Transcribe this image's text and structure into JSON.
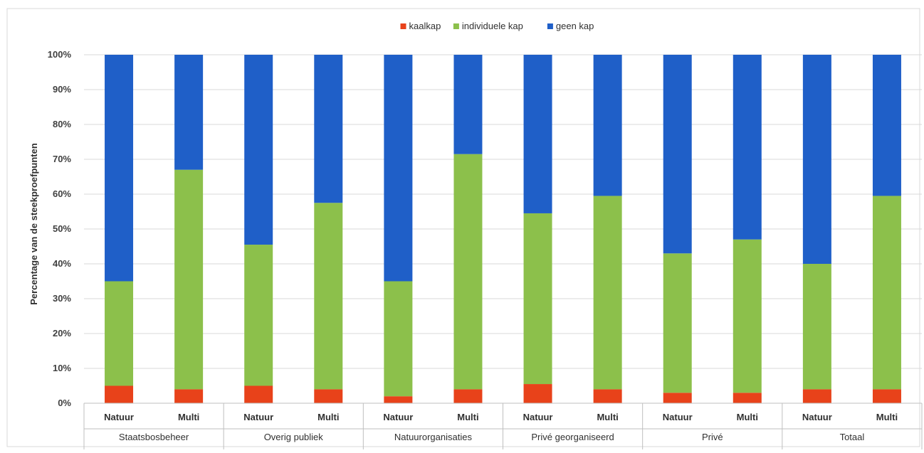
{
  "chart_data": {
    "type": "bar",
    "stacked": true,
    "ylabel": "Percentage van de steekproefpunten",
    "ylim": [
      0,
      100
    ],
    "yticks": [
      "0%",
      "10%",
      "20%",
      "30%",
      "40%",
      "50%",
      "60%",
      "70%",
      "80%",
      "90%",
      "100%"
    ],
    "legend_position": "top",
    "groups": [
      "Staatsbosbeheer",
      "Overig publiek",
      "Natuurorganisaties",
      "Privé georganiseerd",
      "Privé",
      "Totaal"
    ],
    "categories": [
      "Natuur",
      "Multi",
      "Natuur",
      "Multi",
      "Natuur",
      "Multi",
      "Natuur",
      "Multi",
      "Natuur",
      "Multi",
      "Natuur",
      "Multi"
    ],
    "series": [
      {
        "name": "kaalkap",
        "color": "#e8421a",
        "values": [
          5,
          4,
          5,
          4,
          2,
          4,
          5.5,
          4,
          3,
          3,
          4,
          4
        ]
      },
      {
        "name": "individuele kap",
        "color": "#8cc04b",
        "values": [
          30,
          63,
          40.5,
          53.5,
          33,
          67.5,
          49,
          55.5,
          40,
          44,
          36,
          55.5
        ]
      },
      {
        "name": "geen kap",
        "color": "#1f5fc8",
        "values": [
          65,
          33,
          54.5,
          42.5,
          65,
          28.5,
          45.5,
          40.5,
          57,
          53,
          60,
          40.5
        ]
      }
    ]
  }
}
